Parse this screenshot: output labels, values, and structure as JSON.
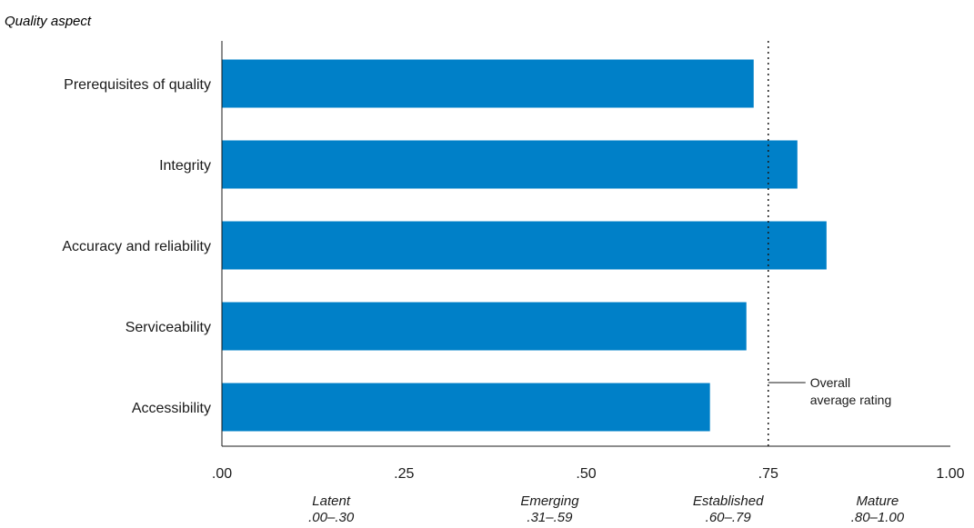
{
  "chart_data": {
    "type": "bar",
    "orientation": "horizontal",
    "ylabel": "Quality aspect",
    "categories": [
      "Prerequisites of quality",
      "Integrity",
      "Accuracy and reliability",
      "Serviceability",
      "Accessibility"
    ],
    "values": [
      0.73,
      0.79,
      0.83,
      0.72,
      0.67
    ],
    "xlim": [
      0,
      1
    ],
    "xticks": [
      {
        "value": 0,
        "label": ".00"
      },
      {
        "value": 0.25,
        "label": ".25"
      },
      {
        "value": 0.5,
        "label": ".50"
      },
      {
        "value": 0.75,
        "label": ".75"
      },
      {
        "value": 1,
        "label": "1.00"
      }
    ],
    "bands": [
      {
        "name": "Latent",
        "range": ".00–.30",
        "center": 0.15
      },
      {
        "name": "Emerging",
        "range": ".31–.59",
        "center": 0.45
      },
      {
        "name": "Established",
        "range": ".60–.79",
        "center": 0.695
      },
      {
        "name": "Mature",
        "range": ".80–1.00",
        "center": 0.9
      }
    ],
    "reference_line": {
      "value": 0.75,
      "label_lines": [
        "Overall",
        "average rating"
      ]
    },
    "colors": {
      "bar": "#0080c8",
      "axis": "#1a1a1a",
      "text": "#1a1a1a"
    },
    "grid": false
  }
}
